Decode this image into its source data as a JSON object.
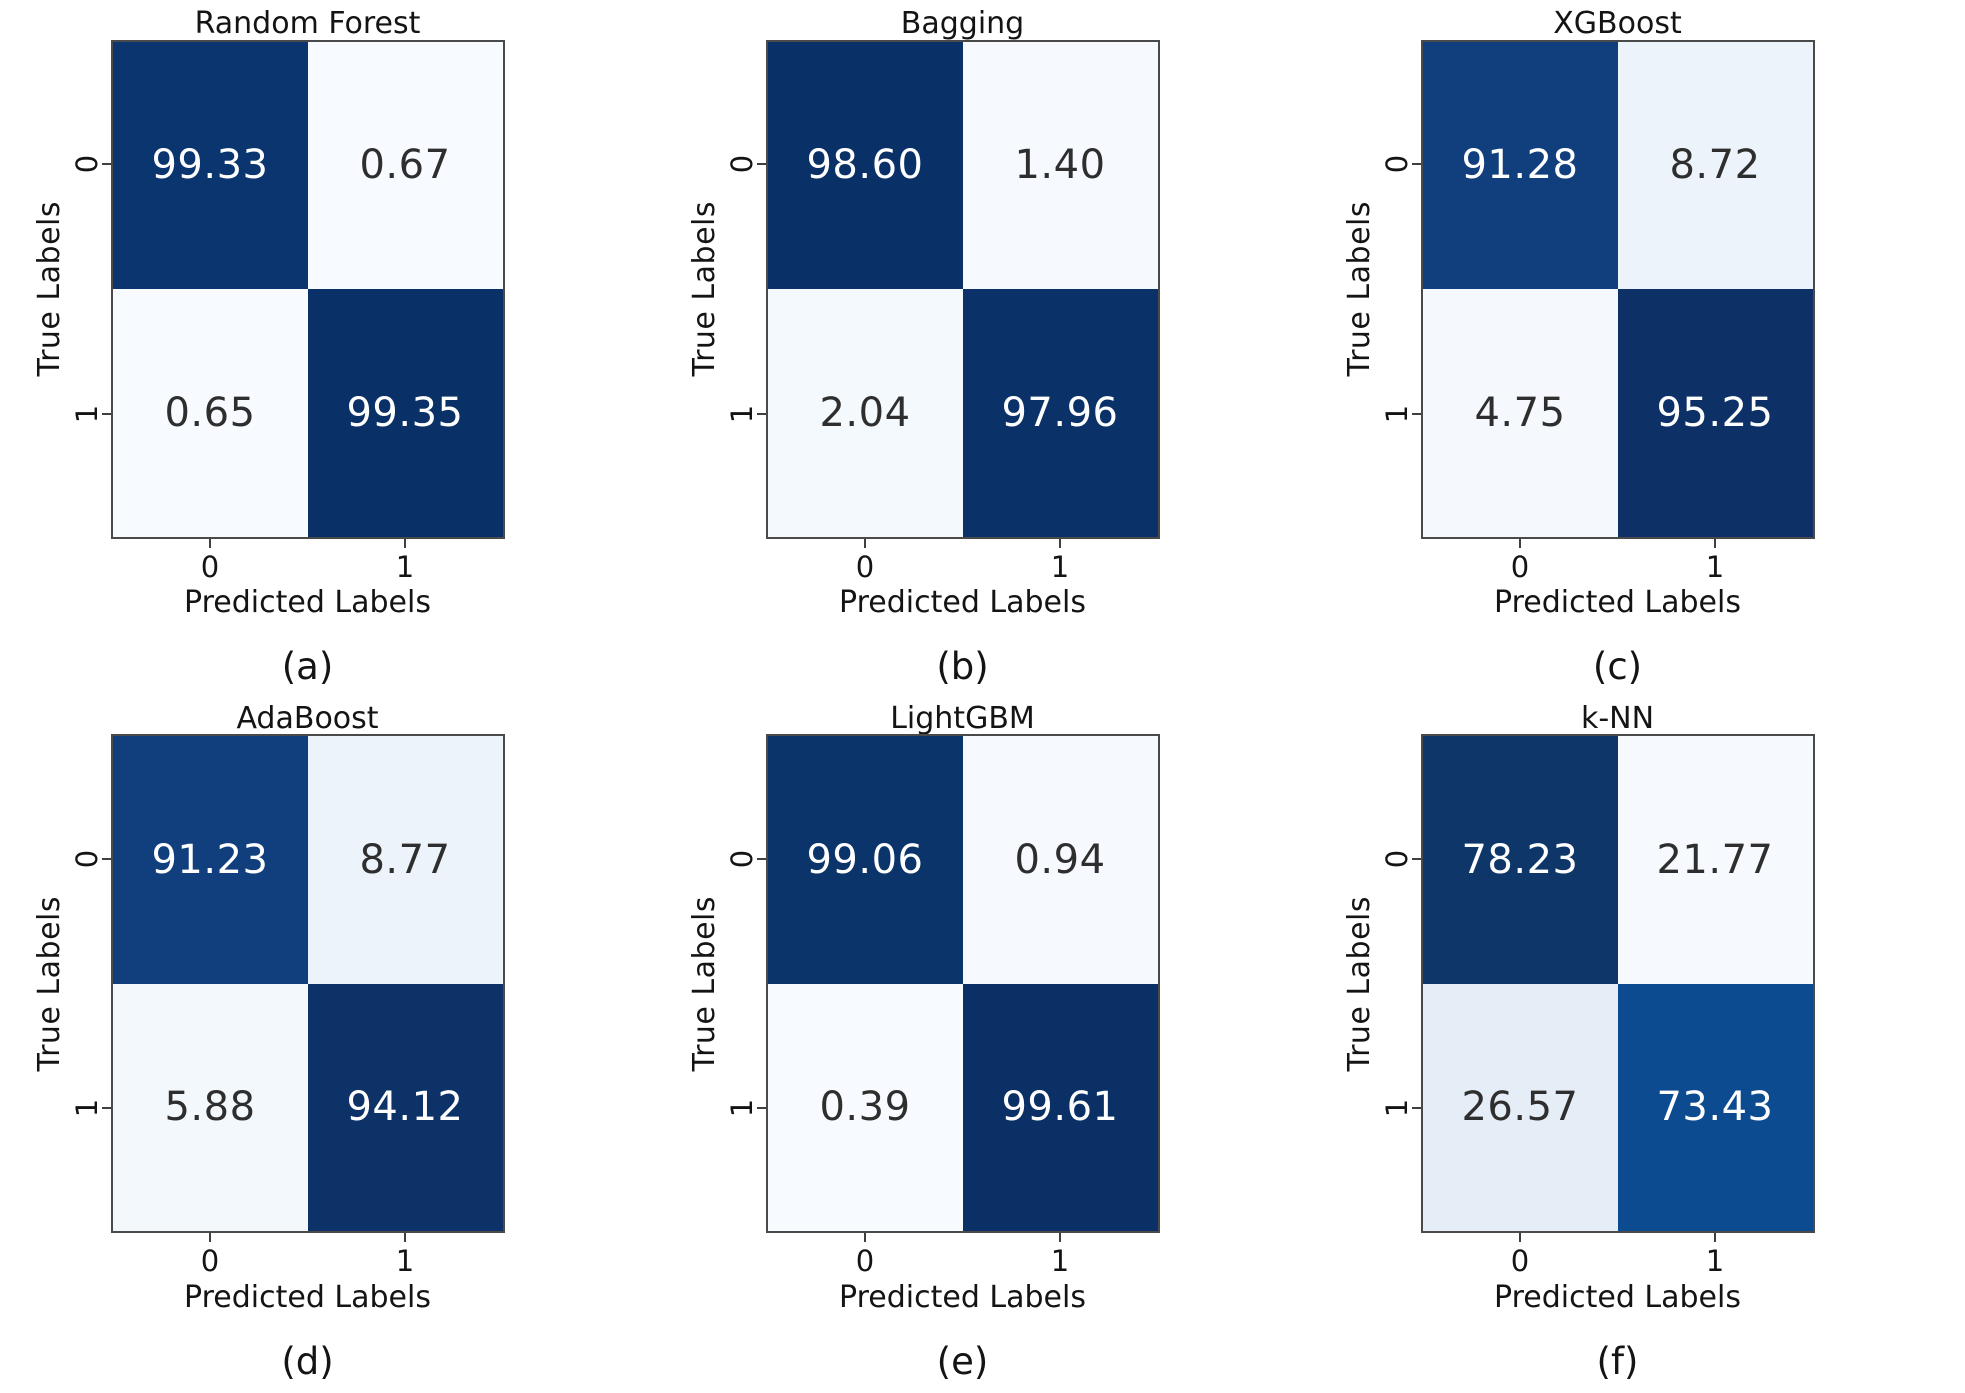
{
  "figure": {
    "ylabel": "True Labels",
    "xlabel": "Predicted Labels",
    "ytick_labels": [
      "0",
      "1"
    ],
    "xtick_labels": [
      "0",
      "1"
    ],
    "colors": {
      "background": "#ffffff",
      "cmap_name": "Blues",
      "cmap_max": "#08306b",
      "cmap_min": "#f7fbff",
      "spine": "#4a4a4a",
      "tick": "#3f3f3f",
      "text_dark": "#2e2e2e",
      "text_light": "#ffffff"
    }
  },
  "chart_data": [
    {
      "type": "heatmap",
      "title": "Random Forest",
      "caption": "(a)",
      "xlabel": "Predicted Labels",
      "ylabel": "True Labels",
      "x_categories": [
        "0",
        "1"
      ],
      "y_categories": [
        "0",
        "1"
      ],
      "values": [
        [
          99.33,
          0.67
        ],
        [
          0.65,
          99.35
        ]
      ],
      "colormap": "Blues",
      "annotated": true
    },
    {
      "type": "heatmap",
      "title": "Bagging",
      "caption": "(b)",
      "xlabel": "Predicted Labels",
      "ylabel": "True Labels",
      "x_categories": [
        "0",
        "1"
      ],
      "y_categories": [
        "0",
        "1"
      ],
      "values": [
        [
          98.6,
          1.4
        ],
        [
          2.04,
          97.96
        ]
      ],
      "colormap": "Blues",
      "annotated": true
    },
    {
      "type": "heatmap",
      "title": "XGBoost",
      "caption": "(c)",
      "xlabel": "Predicted Labels",
      "ylabel": "True Labels",
      "x_categories": [
        "0",
        "1"
      ],
      "y_categories": [
        "0",
        "1"
      ],
      "values": [
        [
          91.28,
          8.72
        ],
        [
          4.75,
          95.25
        ]
      ],
      "colormap": "Blues",
      "annotated": true
    },
    {
      "type": "heatmap",
      "title": "AdaBoost",
      "caption": "(d)",
      "xlabel": "Predicted Labels",
      "ylabel": "True Labels",
      "x_categories": [
        "0",
        "1"
      ],
      "y_categories": [
        "0",
        "1"
      ],
      "values": [
        [
          91.23,
          8.77
        ],
        [
          5.88,
          94.12
        ]
      ],
      "colormap": "Blues",
      "annotated": true
    },
    {
      "type": "heatmap",
      "title": "LightGBM",
      "caption": "(e)",
      "xlabel": "Predicted Labels",
      "ylabel": "True Labels",
      "x_categories": [
        "0",
        "1"
      ],
      "y_categories": [
        "0",
        "1"
      ],
      "values": [
        [
          99.06,
          0.94
        ],
        [
          0.39,
          99.61
        ]
      ],
      "colormap": "Blues",
      "annotated": true
    },
    {
      "type": "heatmap",
      "title": "k-NN",
      "caption": "(f)",
      "xlabel": "Predicted Labels",
      "ylabel": "True Labels",
      "x_categories": [
        "0",
        "1"
      ],
      "y_categories": [
        "0",
        "1"
      ],
      "values": [
        [
          78.23,
          21.77
        ],
        [
          26.57,
          73.43
        ]
      ],
      "colormap": "Blues",
      "annotated": true
    }
  ],
  "panels": [
    {
      "title": "Random Forest",
      "caption": "(a)",
      "cells": [
        {
          "label": "99.33",
          "bg": "#0b356e",
          "fg": "#ffffff"
        },
        {
          "label": "0.67",
          "bg": "#f7fbff",
          "fg": "#2e2e2e"
        },
        {
          "label": "0.65",
          "bg": "#f7fbff",
          "fg": "#2e2e2e"
        },
        {
          "label": "99.35",
          "bg": "#0a3167",
          "fg": "#ffffff"
        }
      ]
    },
    {
      "title": "Bagging",
      "caption": "(b)",
      "cells": [
        {
          "label": "98.60",
          "bg": "#0a3167",
          "fg": "#ffffff"
        },
        {
          "label": "1.40",
          "bg": "#f6fafe",
          "fg": "#2e2e2e"
        },
        {
          "label": "2.04",
          "bg": "#f4f9fd",
          "fg": "#2e2e2e"
        },
        {
          "label": "97.96",
          "bg": "#0b3268",
          "fg": "#ffffff"
        }
      ]
    },
    {
      "title": "XGBoost",
      "caption": "(c)",
      "cells": [
        {
          "label": "91.28",
          "bg": "#113f7e",
          "fg": "#ffffff"
        },
        {
          "label": "8.72",
          "bg": "#ecf3fa",
          "fg": "#2e2e2e"
        },
        {
          "label": "4.75",
          "bg": "#f5f9fd",
          "fg": "#2e2e2e"
        },
        {
          "label": "95.25",
          "bg": "#0d3166",
          "fg": "#ffffff"
        }
      ]
    },
    {
      "title": "AdaBoost",
      "caption": "(d)",
      "cells": [
        {
          "label": "91.23",
          "bg": "#113f7e",
          "fg": "#ffffff"
        },
        {
          "label": "8.77",
          "bg": "#ecf3fa",
          "fg": "#2e2e2e"
        },
        {
          "label": "5.88",
          "bg": "#f3f8fd",
          "fg": "#2e2e2e"
        },
        {
          "label": "94.12",
          "bg": "#0c3268",
          "fg": "#ffffff"
        }
      ]
    },
    {
      "title": "LightGBM",
      "caption": "(e)",
      "cells": [
        {
          "label": "99.06",
          "bg": "#0b346a",
          "fg": "#ffffff"
        },
        {
          "label": "0.94",
          "bg": "#f6fafe",
          "fg": "#2e2e2e"
        },
        {
          "label": "0.39",
          "bg": "#f7fbff",
          "fg": "#2e2e2e"
        },
        {
          "label": "99.61",
          "bg": "#0a3066",
          "fg": "#ffffff"
        }
      ]
    },
    {
      "title": "k-NN",
      "caption": "(f)",
      "cells": [
        {
          "label": "78.23",
          "bg": "#0e3669",
          "fg": "#ffffff"
        },
        {
          "label": "21.77",
          "bg": "#f6fafe",
          "fg": "#2e2e2e"
        },
        {
          "label": "26.57",
          "bg": "#e5edf7",
          "fg": "#2e2e2e"
        },
        {
          "label": "73.43",
          "bg": "#0d4b91",
          "fg": "#ffffff"
        }
      ]
    }
  ]
}
